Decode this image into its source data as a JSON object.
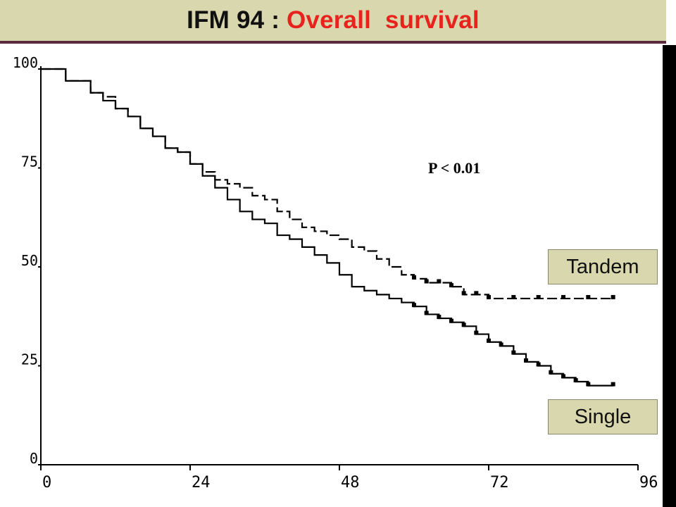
{
  "title": {
    "prefix": "IFM 94 : ",
    "highlight": "Overall  survival"
  },
  "annotation": "P < 0.01",
  "legend": [
    {
      "label": "Tandem",
      "color": "#d9d7ad"
    },
    {
      "label": "Single",
      "color": "#d9d7ad"
    }
  ],
  "colors": {
    "title_bg": "#d9d7ad",
    "title_accent": "#e8231e",
    "rule": "#5a2a3e",
    "curve": "#000000"
  },
  "chart_data": {
    "type": "line",
    "title": "IFM 94 : Overall  survival",
    "xlabel": "",
    "ylabel": "",
    "xlim": [
      0,
      96
    ],
    "ylim": [
      0,
      100
    ],
    "x_ticks": [
      "0",
      "24",
      "48",
      "72",
      "96"
    ],
    "y_ticks": [
      "0",
      "25",
      "50",
      "75",
      "100"
    ],
    "series": [
      {
        "name": "Tandem",
        "style": "dashed",
        "points": [
          [
            0,
            100
          ],
          [
            4,
            97
          ],
          [
            8,
            94
          ],
          [
            10,
            93
          ],
          [
            12,
            90
          ],
          [
            14,
            88
          ],
          [
            16,
            85
          ],
          [
            18,
            83
          ],
          [
            20,
            80
          ],
          [
            22,
            79
          ],
          [
            24,
            76
          ],
          [
            26,
            74
          ],
          [
            28,
            72
          ],
          [
            30,
            71
          ],
          [
            32,
            70
          ],
          [
            34,
            68
          ],
          [
            36,
            67
          ],
          [
            38,
            64
          ],
          [
            40,
            62
          ],
          [
            42,
            60
          ],
          [
            44,
            59
          ],
          [
            46,
            58
          ],
          [
            48,
            57
          ],
          [
            50,
            55
          ],
          [
            52,
            54
          ],
          [
            54,
            52
          ],
          [
            56,
            50
          ],
          [
            58,
            48
          ],
          [
            60,
            47
          ],
          [
            62,
            46
          ],
          [
            64,
            46
          ],
          [
            66,
            45
          ],
          [
            68,
            43
          ],
          [
            70,
            43
          ],
          [
            72,
            42
          ],
          [
            76,
            42
          ],
          [
            80,
            42
          ],
          [
            84,
            42
          ],
          [
            88,
            42
          ],
          [
            92,
            42
          ]
        ]
      },
      {
        "name": "Single",
        "style": "solid",
        "points": [
          [
            0,
            100
          ],
          [
            4,
            97
          ],
          [
            8,
            94
          ],
          [
            10,
            92
          ],
          [
            12,
            90
          ],
          [
            14,
            88
          ],
          [
            16,
            85
          ],
          [
            18,
            83
          ],
          [
            20,
            80
          ],
          [
            22,
            79
          ],
          [
            24,
            76
          ],
          [
            26,
            73
          ],
          [
            28,
            70
          ],
          [
            30,
            67
          ],
          [
            32,
            64
          ],
          [
            34,
            62
          ],
          [
            36,
            61
          ],
          [
            38,
            58
          ],
          [
            40,
            57
          ],
          [
            42,
            55
          ],
          [
            44,
            53
          ],
          [
            46,
            51
          ],
          [
            48,
            48
          ],
          [
            50,
            45
          ],
          [
            52,
            44
          ],
          [
            54,
            43
          ],
          [
            56,
            42
          ],
          [
            58,
            41
          ],
          [
            60,
            40
          ],
          [
            62,
            38
          ],
          [
            64,
            37
          ],
          [
            66,
            36
          ],
          [
            68,
            35
          ],
          [
            70,
            33
          ],
          [
            72,
            31
          ],
          [
            74,
            30
          ],
          [
            76,
            28
          ],
          [
            78,
            26
          ],
          [
            80,
            25
          ],
          [
            82,
            23
          ],
          [
            84,
            22
          ],
          [
            86,
            21
          ],
          [
            88,
            20
          ],
          [
            92,
            20
          ]
        ]
      }
    ],
    "grid": false
  }
}
